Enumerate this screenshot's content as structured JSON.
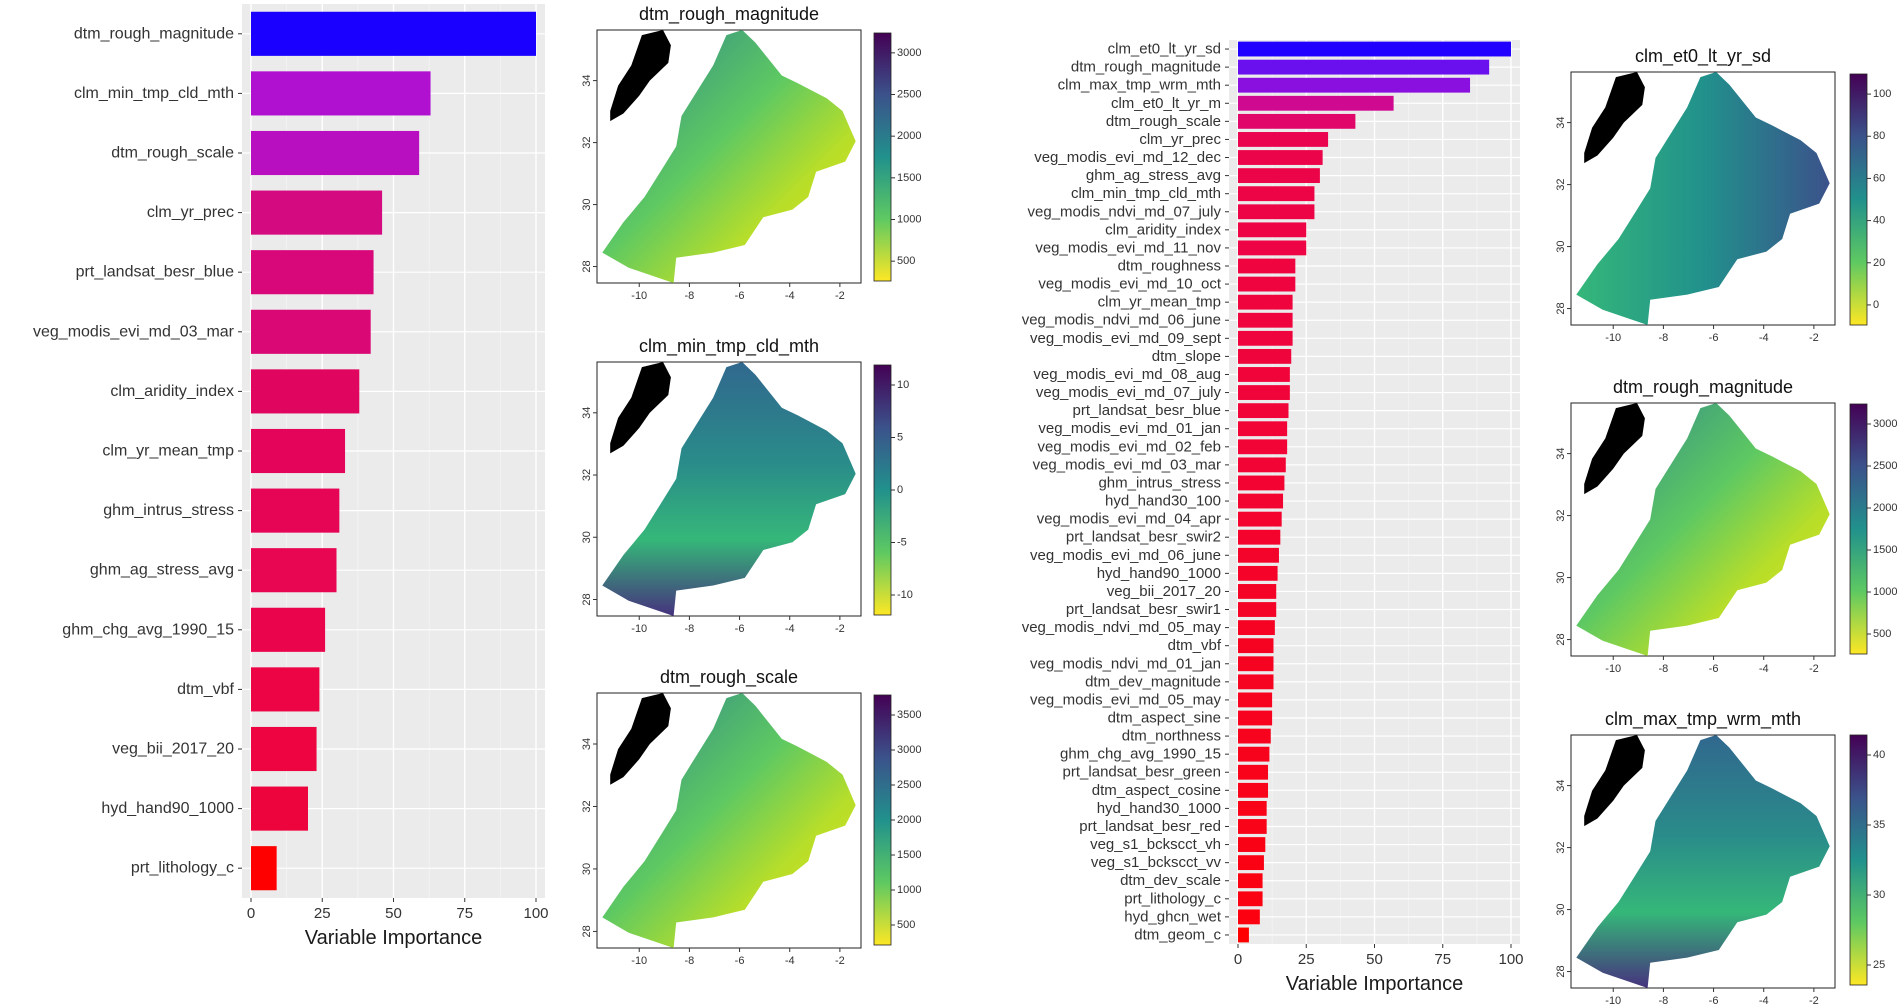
{
  "chart_data": [
    {
      "type": "bar",
      "orientation": "horizontal",
      "xlabel": "Variable Importance",
      "xlim": [
        0,
        100
      ],
      "xticks": [
        "0",
        "25",
        "50",
        "75",
        "100"
      ],
      "categories": [
        "dtm_rough_magnitude",
        "clm_min_tmp_cld_mth",
        "dtm_rough_scale",
        "clm_yr_prec",
        "prt_landsat_besr_blue",
        "veg_modis_evi_md_03_mar",
        "clm_aridity_index",
        "clm_yr_mean_tmp",
        "ghm_intrus_stress",
        "ghm_ag_stress_avg",
        "ghm_chg_avg_1990_15",
        "dtm_vbf",
        "veg_bii_2017_20",
        "hyd_hand90_1000",
        "prt_lithology_c"
      ],
      "values": [
        100,
        63,
        59,
        46,
        43,
        42,
        38,
        33,
        31,
        30,
        26,
        24,
        23,
        20,
        9
      ],
      "colors": [
        "#1a00ff",
        "#b010d0",
        "#b810c0",
        "#d40a80",
        "#d8087a",
        "#da0875",
        "#e00660",
        "#e4055a",
        "#e60555",
        "#e80552",
        "#ea044c",
        "#ec0444",
        "#ed0440",
        "#ee043c",
        "#ff0000"
      ]
    },
    {
      "type": "bar",
      "orientation": "horizontal",
      "xlabel": "Variable Importance",
      "xlim": [
        0,
        100
      ],
      "xticks": [
        "0",
        "25",
        "50",
        "75",
        "100"
      ],
      "categories": [
        "clm_et0_lt_yr_sd",
        "dtm_rough_magnitude",
        "clm_max_tmp_wrm_mth",
        "clm_et0_lt_yr_m",
        "dtm_rough_scale",
        "clm_yr_prec",
        "veg_modis_evi_md_12_dec",
        "ghm_ag_stress_avg",
        "clm_min_tmp_cld_mth",
        "veg_modis_ndvi_md_07_july",
        "clm_aridity_index",
        "veg_modis_evi_md_11_nov",
        "dtm_roughness",
        "veg_modis_evi_md_10_oct",
        "clm_yr_mean_tmp",
        "veg_modis_ndvi_md_06_june",
        "veg_modis_evi_md_09_sept",
        "dtm_slope",
        "veg_modis_evi_md_08_aug",
        "veg_modis_evi_md_07_july",
        "prt_landsat_besr_blue",
        "veg_modis_evi_md_01_jan",
        "veg_modis_evi_md_02_feb",
        "veg_modis_evi_md_03_mar",
        "ghm_intrus_stress",
        "hyd_hand30_100",
        "veg_modis_evi_md_04_apr",
        "prt_landsat_besr_swir2",
        "veg_modis_evi_md_06_june",
        "hyd_hand90_1000",
        "veg_bii_2017_20",
        "prt_landsat_besr_swir1",
        "veg_modis_ndvi_md_05_may",
        "dtm_vbf",
        "veg_modis_ndvi_md_01_jan",
        "dtm_dev_magnitude",
        "veg_modis_evi_md_05_may",
        "dtm_aspect_sine",
        "dtm_northness",
        "ghm_chg_avg_1990_15",
        "prt_landsat_besr_green",
        "dtm_aspect_cosine",
        "hyd_hand30_1000",
        "prt_landsat_besr_red",
        "veg_s1_bckscct_vh",
        "veg_s1_bckscct_vv",
        "dtm_dev_scale",
        "prt_lithology_c",
        "hyd_ghcn_wet",
        "dtm_geom_c"
      ],
      "values": [
        100,
        92,
        85,
        57,
        43,
        33,
        31,
        30,
        28,
        28,
        25,
        25,
        21,
        21,
        20,
        20,
        20,
        19.5,
        19,
        19,
        18.5,
        18,
        18,
        17.5,
        17,
        16.5,
        16,
        15.5,
        15,
        14.5,
        14,
        14,
        13.5,
        13,
        13,
        13,
        12.5,
        12.5,
        12,
        11.5,
        11,
        11,
        10.5,
        10.5,
        10,
        9.5,
        9,
        9,
        8,
        4
      ],
      "colors": [
        "#2200ff",
        "#6a10ee",
        "#8a10e0",
        "#d00a90",
        "#e0066a",
        "#ea0450",
        "#ec044a",
        "#ec0448",
        "#ed0446",
        "#ed0446",
        "#ee0444",
        "#ee0444",
        "#ef0440",
        "#ef0440",
        "#f0043e",
        "#f0043e",
        "#f0043e",
        "#f0043c",
        "#f1043a",
        "#f1043a",
        "#f10438",
        "#f20436",
        "#f20436",
        "#f20434",
        "#f30332",
        "#f30330",
        "#f3032e",
        "#f4032c",
        "#f4032a",
        "#f50328",
        "#f50326",
        "#f50326",
        "#f60324",
        "#f60322",
        "#f60322",
        "#f60322",
        "#f70320",
        "#f70320",
        "#f7031e",
        "#f8031c",
        "#f8031a",
        "#f8031a",
        "#f90318",
        "#f90318",
        "#fa0216",
        "#fa0214",
        "#fb0212",
        "#fb0212",
        "#fc0210",
        "#ff0000"
      ]
    }
  ],
  "maps": [
    {
      "title": "dtm_rough_magnitude",
      "colorbar_ticks": [
        "3000",
        "2500",
        "2000",
        "1500",
        "1000",
        "500"
      ],
      "yticks": [
        "34",
        "32",
        "30",
        "28"
      ],
      "xticks": [
        "-10",
        "-8",
        "-6",
        "-4",
        "-2"
      ]
    },
    {
      "title": "clm_min_tmp_cld_mth",
      "colorbar_ticks": [
        "10",
        "5",
        "0",
        "-5",
        "-10"
      ],
      "yticks": [
        "34",
        "32",
        "30",
        "28"
      ],
      "xticks": [
        "-10",
        "-8",
        "-6",
        "-4",
        "-2"
      ]
    },
    {
      "title": "dtm_rough_scale",
      "colorbar_ticks": [
        "3500",
        "3000",
        "2500",
        "2000",
        "1500",
        "1000",
        "500"
      ],
      "yticks": [
        "34",
        "32",
        "30",
        "28"
      ],
      "xticks": [
        "-10",
        "-8",
        "-6",
        "-4",
        "-2"
      ]
    },
    {
      "title": "clm_et0_lt_yr_sd",
      "colorbar_ticks": [
        "100",
        "80",
        "60",
        "40",
        "20",
        "0"
      ],
      "yticks": [
        "34",
        "32",
        "30",
        "28"
      ],
      "xticks": [
        "-10",
        "-8",
        "-6",
        "-4",
        "-2"
      ]
    },
    {
      "title": "dtm_rough_magnitude",
      "colorbar_ticks": [
        "3000",
        "2500",
        "2000",
        "1500",
        "1000",
        "500"
      ],
      "yticks": [
        "34",
        "32",
        "30",
        "28"
      ],
      "xticks": [
        "-10",
        "-8",
        "-6",
        "-4",
        "-2"
      ]
    },
    {
      "title": "clm_max_tmp_wrm_mth",
      "colorbar_ticks": [
        "40",
        "35",
        "30",
        "25"
      ],
      "yticks": [
        "34",
        "32",
        "30",
        "28"
      ],
      "xticks": [
        "-10",
        "-8",
        "-6",
        "-4",
        "-2"
      ]
    }
  ]
}
